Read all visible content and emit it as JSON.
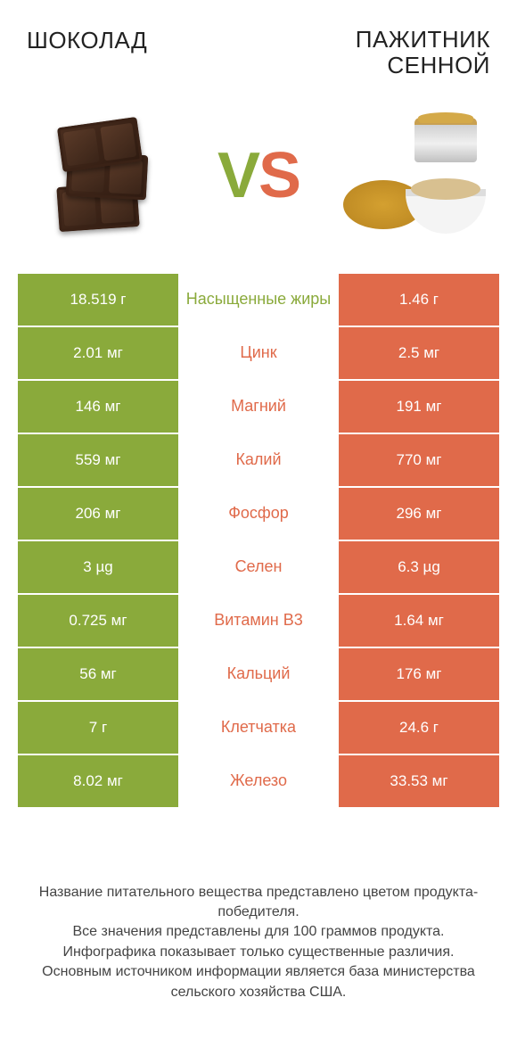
{
  "titles": {
    "left": "Шоколад",
    "right_line1": "Пажитник",
    "right_line2": "сенной"
  },
  "vs": {
    "v": "V",
    "s": "S"
  },
  "colors": {
    "green": "#8aaa3b",
    "orange": "#e06a4a"
  },
  "rows": [
    {
      "left": "18.519 г",
      "label": "Насыщенные жиры",
      "right": "1.46 г",
      "winner": "left"
    },
    {
      "left": "2.01 мг",
      "label": "Цинк",
      "right": "2.5 мг",
      "winner": "right"
    },
    {
      "left": "146 мг",
      "label": "Магний",
      "right": "191 мг",
      "winner": "right"
    },
    {
      "left": "559 мг",
      "label": "Калий",
      "right": "770 мг",
      "winner": "right"
    },
    {
      "left": "206 мг",
      "label": "Фосфор",
      "right": "296 мг",
      "winner": "right"
    },
    {
      "left": "3 µg",
      "label": "Селен",
      "right": "6.3 µg",
      "winner": "right"
    },
    {
      "left": "0.725 мг",
      "label": "Витамин B3",
      "right": "1.64 мг",
      "winner": "right"
    },
    {
      "left": "56 мг",
      "label": "Кальций",
      "right": "176 мг",
      "winner": "right"
    },
    {
      "left": "7 г",
      "label": "Клетчатка",
      "right": "24.6 г",
      "winner": "right"
    },
    {
      "left": "8.02 мг",
      "label": "Железо",
      "right": "33.53 мг",
      "winner": "right"
    }
  ],
  "footer": {
    "l1": "Название питательного вещества представлено цветом продукта-победителя.",
    "l2": "Все значения представлены для 100 граммов продукта.",
    "l3": "Инфографика показывает только существенные различия.",
    "l4": "Основным источником информации является база министерства сельского хозяйства США."
  }
}
